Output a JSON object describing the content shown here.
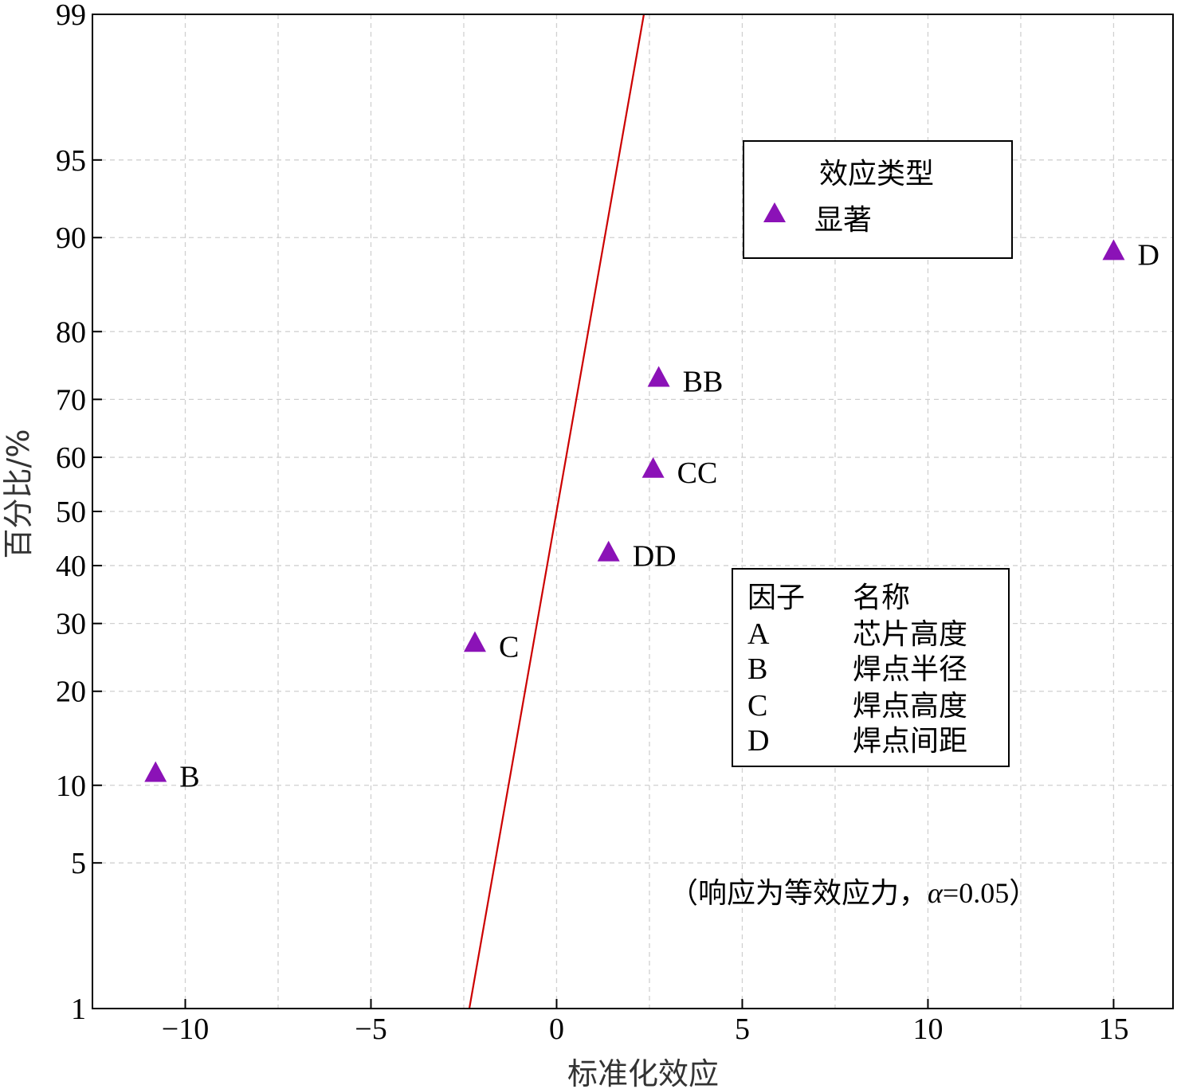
{
  "chart_data": {
    "type": "scatter",
    "xlabel": "标准化效应",
    "ylabel": "百分比/%",
    "xlim": [
      -12.5,
      16.6
    ],
    "ylim": [
      1,
      99
    ],
    "yscale": "probit",
    "x_ticks": [
      -10,
      -5,
      0,
      5,
      10,
      15
    ],
    "x_tick_labels": [
      "−10",
      "−5",
      "0",
      "5",
      "10",
      "15"
    ],
    "x_minor_grid": [
      -7.5,
      -2.5,
      2.5,
      7.5,
      12.5
    ],
    "y_ticks": [
      1,
      5,
      10,
      20,
      30,
      40,
      50,
      60,
      70,
      80,
      90,
      95,
      99
    ],
    "grid": true,
    "marker_color": "#8b12b7",
    "line_color": "#cc0000",
    "reference_line": {
      "x": [
        -2.35,
        2.35
      ],
      "y": [
        1,
        99
      ]
    },
    "points": [
      {
        "label": "B",
        "x": -10.8,
        "y": 11.1
      },
      {
        "label": "C",
        "x": -2.2,
        "y": 27.0
      },
      {
        "label": "DD",
        "x": 1.4,
        "y": 42.5
      },
      {
        "label": "CC",
        "x": 2.6,
        "y": 58.0
      },
      {
        "label": "BB",
        "x": 2.75,
        "y": 73.5
      },
      {
        "label": "D",
        "x": 15.0,
        "y": 88.9
      }
    ],
    "legend": {
      "position": "top-right",
      "title": "效应类型",
      "entries": [
        "显著"
      ]
    },
    "factor_table": {
      "headers": [
        "因子",
        "名称"
      ],
      "rows": [
        [
          "A",
          "芯片高度"
        ],
        [
          "B",
          "焊点半径"
        ],
        [
          "C",
          "焊点高度"
        ],
        [
          "D",
          "焊点间距"
        ]
      ]
    },
    "note": "（响应为等效应力，α=0.05）",
    "note_parts": [
      "（响应为等效应力，",
      "α",
      "=0.05）"
    ]
  }
}
